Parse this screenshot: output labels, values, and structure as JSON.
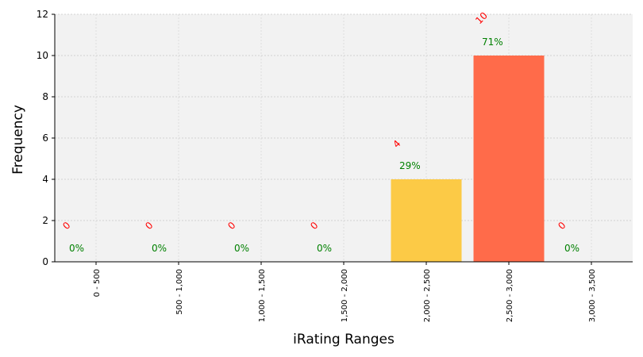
{
  "chart_data": {
    "type": "bar",
    "xlabel": "iRating Ranges",
    "ylabel": "Frequency",
    "categories": [
      "0 - 500",
      "500 - 1,000",
      "1,000 - 1,500",
      "1,500 - 2,000",
      "2,000 - 2,500",
      "2,500 - 3,000",
      "3,000 - 3,500"
    ],
    "values": [
      0,
      0,
      0,
      0,
      4,
      10,
      0
    ],
    "percent_labels": [
      "0%",
      "0%",
      "0%",
      "0%",
      "29%",
      "71%",
      "0%"
    ],
    "count_labels": [
      "0",
      "0",
      "0",
      "0",
      "4",
      "10",
      "0"
    ],
    "bar_colors": [
      "#fcca46",
      "#fcca46",
      "#fcca46",
      "#fcca46",
      "#fcca46",
      "#ff6b4a",
      "#fcca46"
    ],
    "ylim": [
      0,
      12
    ],
    "yticks": [
      0,
      2,
      4,
      6,
      8,
      10,
      12
    ],
    "grid": true,
    "plot_background": "#f2f2f2",
    "count_label_color": "#ff0000",
    "percent_label_color": "#008000"
  }
}
